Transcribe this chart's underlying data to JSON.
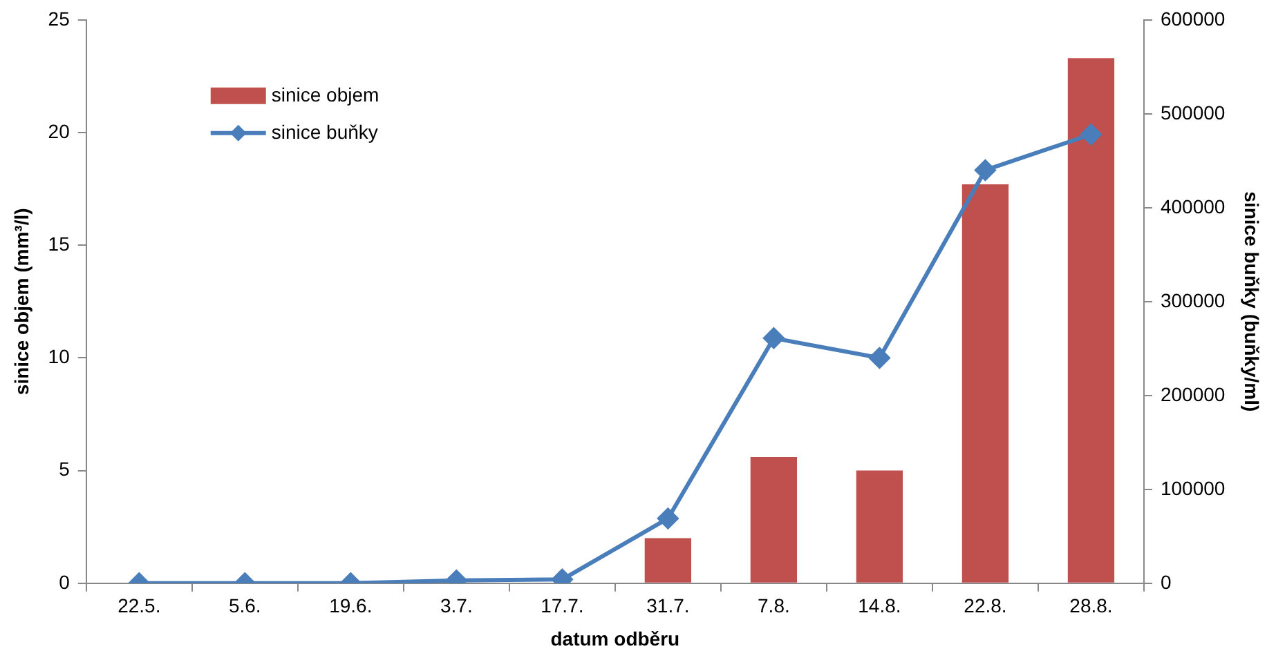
{
  "chart_data": {
    "type": "bar",
    "xlabel": "datum odběru",
    "ylabel": "sinice objem (mm³/l)",
    "y2label": "sinice buňky (buňky/ml)",
    "categories": [
      "22.5.",
      "5.6.",
      "19.6.",
      "3.7.",
      "17.7.",
      "31.7.",
      "7.8.",
      "14.8.",
      "22.8.",
      "28.8."
    ],
    "series": [
      {
        "name": "sinice objem",
        "color": "#c0504d",
        "values": [
          0,
          0,
          0,
          0,
          0,
          2.0,
          5.6,
          5.0,
          17.7,
          23.3
        ]
      },
      {
        "name": "sinice buňky",
        "type": "line",
        "axis": "y2",
        "color": "#4a7ebb",
        "marker": "diamond",
        "values": [
          0,
          0,
          0,
          3000,
          4000,
          69000,
          261000,
          240000,
          440000,
          478000
        ]
      }
    ],
    "ylim": [
      0,
      25
    ],
    "yticks": [
      0,
      5,
      10,
      15,
      20,
      25
    ],
    "y2lim": [
      0,
      600000
    ],
    "y2ticks": [
      0,
      100000,
      200000,
      300000,
      400000,
      500000,
      600000
    ],
    "grid": false,
    "legend": "top left"
  }
}
